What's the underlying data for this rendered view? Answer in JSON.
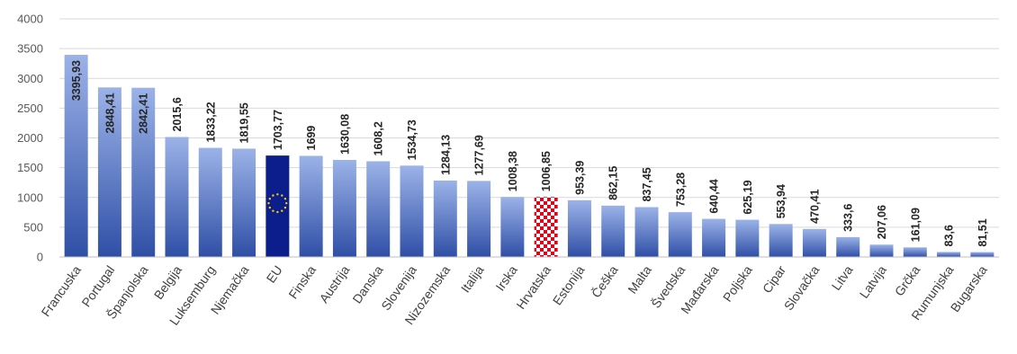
{
  "chart_data": {
    "type": "bar",
    "title": "",
    "xlabel": "",
    "ylabel": "",
    "ylim": [
      0,
      4000
    ],
    "yticks": [
      0,
      500,
      1000,
      1500,
      2000,
      2500,
      3000,
      3500,
      4000
    ],
    "grid": true,
    "legend": "none",
    "categories": [
      "Francuska",
      "Portugal",
      "Španjolska",
      "Belgija",
      "Luksemburg",
      "Njemačka",
      "EU",
      "Finska",
      "Austrija",
      "Danska",
      "Slovenija",
      "Nizozemska",
      "Italija",
      "Irska",
      "Hrvatska",
      "Estonija",
      "Češka",
      "Malta",
      "Švedska",
      "Mađarska",
      "Poljska",
      "Cipar",
      "Slovačka",
      "Litva",
      "Latvija",
      "Grčka",
      "Rumunjska",
      "Bugarska"
    ],
    "values": [
      3395.93,
      2848.41,
      2842.41,
      2015.6,
      1833.22,
      1819.55,
      1703.77,
      1699,
      1630.08,
      1608.2,
      1534.73,
      1284.13,
      1277.69,
      1008.38,
      1006.85,
      953.39,
      862.15,
      837.45,
      753.28,
      640.44,
      625.19,
      553.94,
      470.41,
      333.6,
      207.06,
      161.09,
      83.6,
      81.51
    ],
    "value_labels": [
      "3395,93",
      "2848,41",
      "2842,41",
      "2015,6",
      "1833,22",
      "1819,55",
      "1703,77",
      "1699",
      "1630,08",
      "1608,2",
      "1534,73",
      "1284,13",
      "1277,69",
      "1008,38",
      "1006,85",
      "953,39",
      "862,15",
      "837,45",
      "753,28",
      "640,44",
      "625,19",
      "553,94",
      "470,41",
      "333,6",
      "207,06",
      "161,09",
      "83,6",
      "81,51"
    ],
    "inside_labels": [
      "Francuska",
      "Portugal",
      "Španjolska"
    ],
    "special_bars": {
      "EU": "eu-flag",
      "Hrvatska": "croatian-checkerboard"
    },
    "colors": {
      "bar_top": "#9cb3e8",
      "bar_bottom": "#2f4fa6",
      "eu_blue": "#0b1e8c",
      "eu_star": "#ffcc00",
      "checker_red": "#e3001a",
      "checker_white": "#ffffff"
    }
  }
}
